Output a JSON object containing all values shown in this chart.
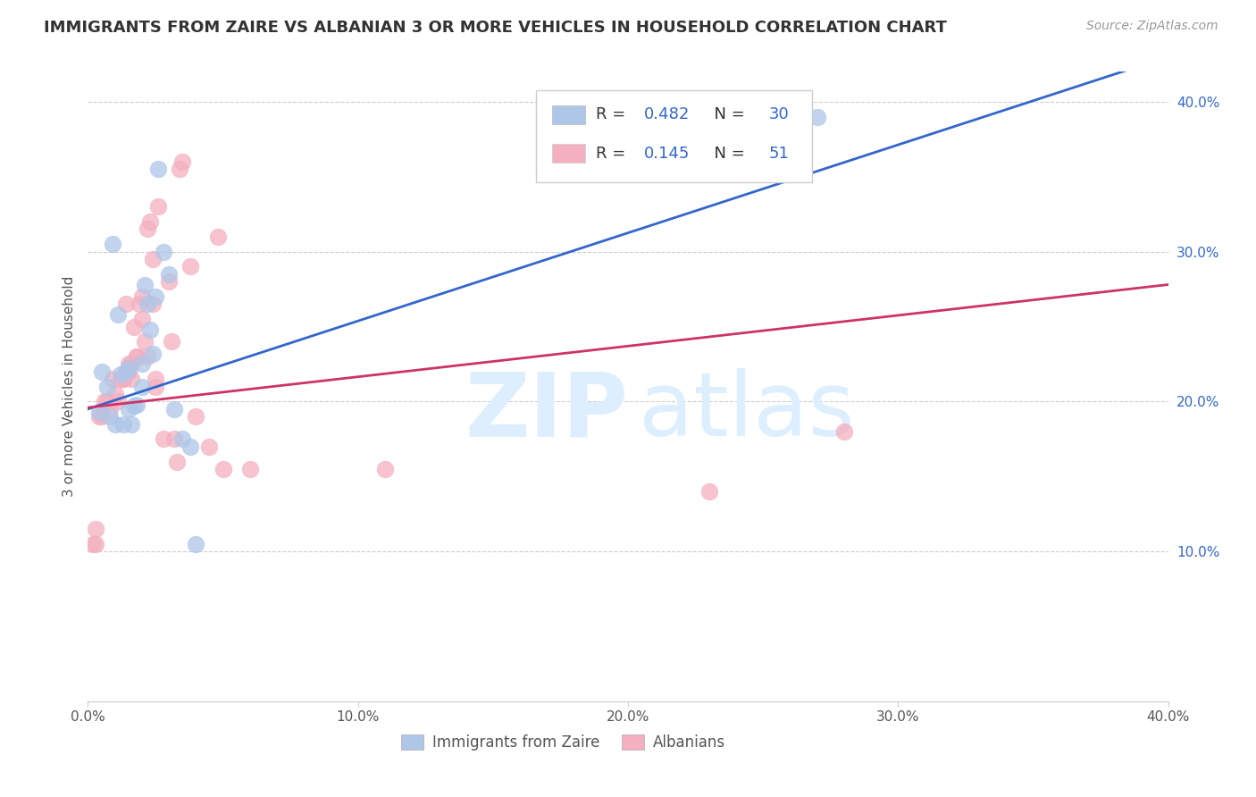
{
  "title": "IMMIGRANTS FROM ZAIRE VS ALBANIAN 3 OR MORE VEHICLES IN HOUSEHOLD CORRELATION CHART",
  "source": "Source: ZipAtlas.com",
  "ylabel": "3 or more Vehicles in Household",
  "xlim": [
    0.0,
    0.4
  ],
  "ylim": [
    0.0,
    0.42
  ],
  "xtick_labels": [
    "0.0%",
    "10.0%",
    "20.0%",
    "30.0%",
    "40.0%"
  ],
  "xtick_vals": [
    0.0,
    0.1,
    0.2,
    0.3,
    0.4
  ],
  "ytick_labels_right": [
    "10.0%",
    "20.0%",
    "30.0%",
    "40.0%"
  ],
  "ytick_vals_right": [
    0.1,
    0.2,
    0.3,
    0.4
  ],
  "grid_color": "#cccccc",
  "background_color": "#ffffff",
  "legend_labels": [
    "Immigrants from Zaire",
    "Albanians"
  ],
  "blue_R": "0.482",
  "blue_N": "30",
  "pink_R": "0.145",
  "pink_N": "51",
  "blue_color": "#aec6e8",
  "pink_color": "#f4afc0",
  "blue_line_color": "#3366cc",
  "pink_line_color": "#cc3366",
  "blue_line_x": [
    0.0,
    0.4
  ],
  "blue_line_y": [
    0.195,
    0.43
  ],
  "pink_line_x": [
    0.0,
    0.4
  ],
  "pink_line_y": [
    0.196,
    0.278
  ],
  "blue_scatter_x": [
    0.004,
    0.008,
    0.01,
    0.012,
    0.014,
    0.015,
    0.015,
    0.016,
    0.017,
    0.018,
    0.02,
    0.02,
    0.021,
    0.022,
    0.023,
    0.024,
    0.025,
    0.026,
    0.028,
    0.03,
    0.032,
    0.035,
    0.038,
    0.04,
    0.005,
    0.007,
    0.009,
    0.011,
    0.013,
    0.27
  ],
  "blue_scatter_y": [
    0.193,
    0.19,
    0.185,
    0.218,
    0.22,
    0.222,
    0.195,
    0.185,
    0.197,
    0.198,
    0.21,
    0.225,
    0.278,
    0.265,
    0.248,
    0.232,
    0.27,
    0.355,
    0.3,
    0.285,
    0.195,
    0.175,
    0.17,
    0.105,
    0.22,
    0.21,
    0.305,
    0.258,
    0.185,
    0.39
  ],
  "pink_scatter_x": [
    0.002,
    0.003,
    0.004,
    0.005,
    0.006,
    0.007,
    0.008,
    0.009,
    0.01,
    0.011,
    0.012,
    0.013,
    0.013,
    0.014,
    0.014,
    0.015,
    0.015,
    0.016,
    0.016,
    0.017,
    0.018,
    0.018,
    0.019,
    0.02,
    0.02,
    0.021,
    0.022,
    0.022,
    0.023,
    0.024,
    0.024,
    0.025,
    0.025,
    0.026,
    0.028,
    0.03,
    0.031,
    0.032,
    0.033,
    0.034,
    0.035,
    0.038,
    0.04,
    0.045,
    0.048,
    0.05,
    0.06,
    0.11,
    0.23,
    0.28,
    0.003
  ],
  "pink_scatter_y": [
    0.105,
    0.115,
    0.19,
    0.19,
    0.2,
    0.2,
    0.195,
    0.215,
    0.205,
    0.2,
    0.215,
    0.215,
    0.215,
    0.22,
    0.265,
    0.22,
    0.225,
    0.225,
    0.215,
    0.25,
    0.23,
    0.23,
    0.265,
    0.255,
    0.27,
    0.24,
    0.23,
    0.315,
    0.32,
    0.295,
    0.265,
    0.21,
    0.215,
    0.33,
    0.175,
    0.28,
    0.24,
    0.175,
    0.16,
    0.355,
    0.36,
    0.29,
    0.19,
    0.17,
    0.31,
    0.155,
    0.155,
    0.155,
    0.14,
    0.18,
    0.105
  ]
}
